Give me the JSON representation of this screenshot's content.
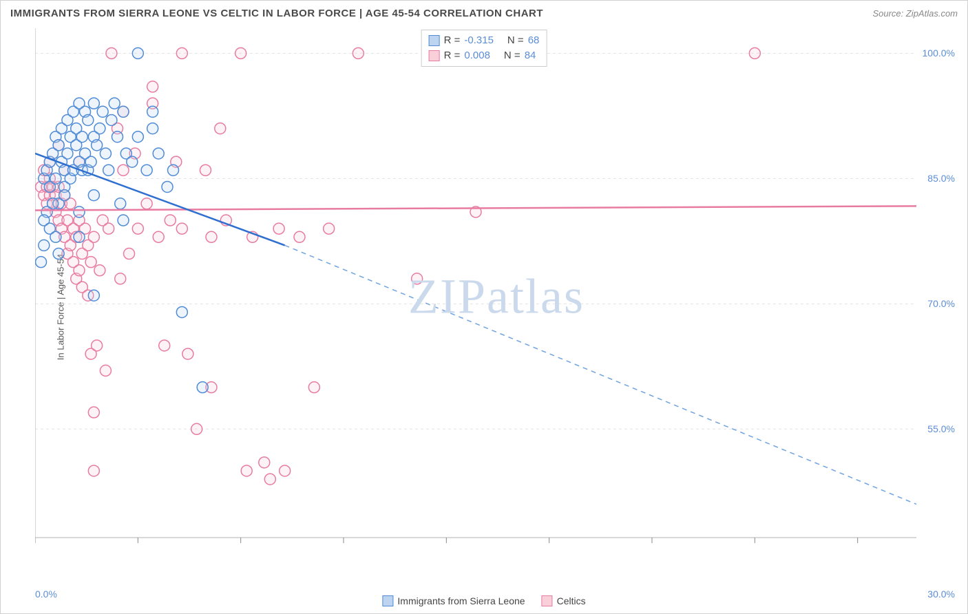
{
  "title": "IMMIGRANTS FROM SIERRA LEONE VS CELTIC IN LABOR FORCE | AGE 45-54 CORRELATION CHART",
  "source": "Source: ZipAtlas.com",
  "y_axis_label": "In Labor Force | Age 45-54",
  "watermark": "ZIPatlas",
  "chart": {
    "type": "scatter",
    "background_color": "#ffffff",
    "grid_color": "#e3e3e3",
    "axis_color": "#b0b0b0",
    "tick_color": "#888888",
    "tick_label_color": "#5b8dd6",
    "xlim": [
      0,
      30
    ],
    "ylim": [
      42,
      103
    ],
    "x_ticks": [
      0,
      3.5,
      7,
      10.5,
      14,
      17.5,
      21,
      24.5,
      28
    ],
    "x_tick_labels": {
      "0": "0.0%",
      "30": "30.0%"
    },
    "y_grid": [
      55,
      70,
      85,
      100
    ],
    "y_tick_labels": {
      "55": "55.0%",
      "70": "70.0%",
      "85": "85.0%",
      "100": "100.0%"
    },
    "marker_radius": 8,
    "marker_stroke_width": 1.5,
    "marker_fill_opacity": 0.25,
    "series": [
      {
        "name": "Immigrants from Sierra Leone",
        "color": "#6fa3e0",
        "fill": "#bcd4f0",
        "stroke": "#4f8bd6",
        "R": "-0.315",
        "N": "68",
        "trend": {
          "x1": 0,
          "y1": 88,
          "x2": 8.5,
          "y2": 77,
          "x2_ext": 30,
          "y2_ext": 46,
          "width": 2.5
        },
        "points": [
          [
            0.3,
            85
          ],
          [
            0.4,
            86
          ],
          [
            0.5,
            84
          ],
          [
            0.5,
            87
          ],
          [
            0.6,
            88
          ],
          [
            0.7,
            85
          ],
          [
            0.7,
            90
          ],
          [
            0.8,
            89
          ],
          [
            0.8,
            82
          ],
          [
            0.9,
            91
          ],
          [
            0.9,
            87
          ],
          [
            1.0,
            84
          ],
          [
            1.0,
            86
          ],
          [
            1.1,
            92
          ],
          [
            1.1,
            88
          ],
          [
            1.2,
            85
          ],
          [
            1.2,
            90
          ],
          [
            1.3,
            93
          ],
          [
            1.3,
            86
          ],
          [
            1.4,
            89
          ],
          [
            1.4,
            91
          ],
          [
            1.5,
            87
          ],
          [
            1.5,
            94
          ],
          [
            1.6,
            86
          ],
          [
            1.6,
            90
          ],
          [
            1.7,
            88
          ],
          [
            1.7,
            93
          ],
          [
            1.8,
            92
          ],
          [
            1.8,
            86
          ],
          [
            1.9,
            87
          ],
          [
            2.0,
            90
          ],
          [
            2.0,
            94
          ],
          [
            2.1,
            89
          ],
          [
            2.2,
            91
          ],
          [
            2.3,
            93
          ],
          [
            2.4,
            88
          ],
          [
            2.5,
            86
          ],
          [
            2.6,
            92
          ],
          [
            2.7,
            94
          ],
          [
            2.8,
            90
          ],
          [
            2.9,
            82
          ],
          [
            3.0,
            93
          ],
          [
            3.1,
            88
          ],
          [
            3.3,
            87
          ],
          [
            3.5,
            100
          ],
          [
            3.5,
            90
          ],
          [
            3.8,
            86
          ],
          [
            4.0,
            91
          ],
          [
            4.0,
            93
          ],
          [
            4.2,
            88
          ],
          [
            4.5,
            84
          ],
          [
            4.7,
            86
          ],
          [
            5.0,
            69
          ],
          [
            5.7,
            60
          ],
          [
            3.0,
            80
          ],
          [
            2.0,
            83
          ],
          [
            1.5,
            81
          ],
          [
            1.0,
            83
          ],
          [
            0.6,
            82
          ],
          [
            0.4,
            81
          ],
          [
            0.3,
            80
          ],
          [
            2.0,
            71
          ],
          [
            1.5,
            78
          ],
          [
            0.5,
            79
          ],
          [
            0.7,
            78
          ],
          [
            0.8,
            76
          ],
          [
            0.3,
            77
          ],
          [
            0.2,
            75
          ]
        ]
      },
      {
        "name": "Celtics",
        "color": "#f09bb5",
        "fill": "#f9cfda",
        "stroke": "#e87ba1",
        "R": "0.008",
        "N": "84",
        "trend": {
          "x1": 0,
          "y1": 81.2,
          "x2": 30,
          "y2": 81.7,
          "width": 2.5
        },
        "points": [
          [
            0.2,
            84
          ],
          [
            0.3,
            83
          ],
          [
            0.4,
            84
          ],
          [
            0.4,
            82
          ],
          [
            0.5,
            83
          ],
          [
            0.5,
            85
          ],
          [
            0.6,
            82
          ],
          [
            0.6,
            84
          ],
          [
            0.7,
            83
          ],
          [
            0.7,
            81
          ],
          [
            0.8,
            84
          ],
          [
            0.8,
            80
          ],
          [
            0.9,
            82
          ],
          [
            0.9,
            79
          ],
          [
            1.0,
            83
          ],
          [
            1.0,
            78
          ],
          [
            1.1,
            80
          ],
          [
            1.1,
            76
          ],
          [
            1.2,
            77
          ],
          [
            1.2,
            82
          ],
          [
            1.3,
            79
          ],
          [
            1.3,
            75
          ],
          [
            1.4,
            78
          ],
          [
            1.4,
            73
          ],
          [
            1.5,
            80
          ],
          [
            1.5,
            74
          ],
          [
            1.6,
            76
          ],
          [
            1.6,
            72
          ],
          [
            1.7,
            79
          ],
          [
            1.8,
            71
          ],
          [
            1.8,
            77
          ],
          [
            1.9,
            64
          ],
          [
            1.9,
            75
          ],
          [
            2.0,
            78
          ],
          [
            2.0,
            50
          ],
          [
            2.1,
            65
          ],
          [
            2.2,
            74
          ],
          [
            2.3,
            80
          ],
          [
            2.4,
            62
          ],
          [
            2.5,
            79
          ],
          [
            2.6,
            100
          ],
          [
            2.8,
            91
          ],
          [
            2.9,
            73
          ],
          [
            3.0,
            86
          ],
          [
            3.2,
            76
          ],
          [
            3.4,
            88
          ],
          [
            3.5,
            79
          ],
          [
            3.8,
            82
          ],
          [
            4.0,
            96
          ],
          [
            4.2,
            78
          ],
          [
            4.4,
            65
          ],
          [
            4.6,
            80
          ],
          [
            4.8,
            87
          ],
          [
            5.0,
            100
          ],
          [
            5.0,
            79
          ],
          [
            5.2,
            64
          ],
          [
            5.5,
            55
          ],
          [
            5.8,
            86
          ],
          [
            6.0,
            78
          ],
          [
            6.0,
            60
          ],
          [
            6.3,
            91
          ],
          [
            6.5,
            80
          ],
          [
            7.0,
            100
          ],
          [
            7.2,
            50
          ],
          [
            7.4,
            78
          ],
          [
            7.8,
            51
          ],
          [
            8.0,
            49
          ],
          [
            8.3,
            79
          ],
          [
            8.5,
            50
          ],
          [
            9.0,
            78
          ],
          [
            9.5,
            60
          ],
          [
            10.0,
            79
          ],
          [
            11.0,
            100
          ],
          [
            13.0,
            73
          ],
          [
            15.0,
            81
          ],
          [
            24.5,
            100
          ],
          [
            3.0,
            93
          ],
          [
            4.0,
            94
          ],
          [
            1.5,
            87
          ],
          [
            1.0,
            86
          ],
          [
            0.5,
            87
          ],
          [
            0.3,
            86
          ],
          [
            0.8,
            89
          ],
          [
            2.0,
            57
          ]
        ]
      }
    ]
  }
}
